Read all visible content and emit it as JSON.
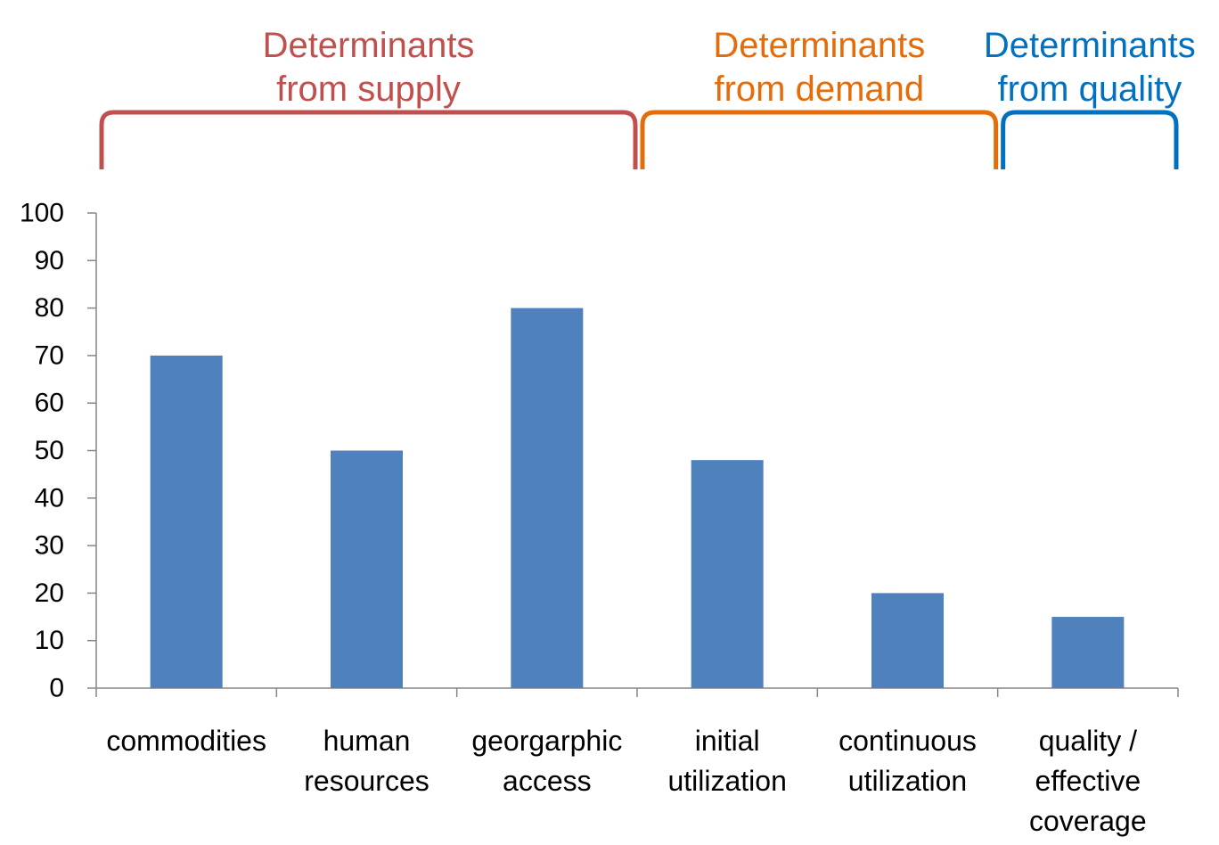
{
  "chart_data": {
    "type": "bar",
    "categories": [
      [
        "commodities"
      ],
      [
        "human",
        "resources"
      ],
      [
        "georgarphic",
        "access"
      ],
      [
        "initial",
        "utilization"
      ],
      [
        "continuous",
        "utilization"
      ],
      [
        "quality /",
        "effective",
        "coverage"
      ]
    ],
    "values": [
      70,
      50,
      80,
      48,
      20,
      15
    ],
    "ylim": [
      0,
      100
    ],
    "yticks": [
      0,
      10,
      20,
      30,
      40,
      50,
      60,
      70,
      80,
      90,
      100
    ],
    "bar_color": "#4F81BD",
    "grid": false,
    "groups": [
      {
        "lines": [
          "Determinants",
          "from supply"
        ],
        "color": "#C0504D",
        "from_category": 0,
        "to_category": 2
      },
      {
        "lines": [
          "Determinants",
          "from demand"
        ],
        "color": "#E46C0A",
        "from_category": 3,
        "to_category": 4
      },
      {
        "lines": [
          "Determinants",
          "from quality"
        ],
        "color": "#0070C0",
        "from_category": 5,
        "to_category": 5
      }
    ]
  }
}
